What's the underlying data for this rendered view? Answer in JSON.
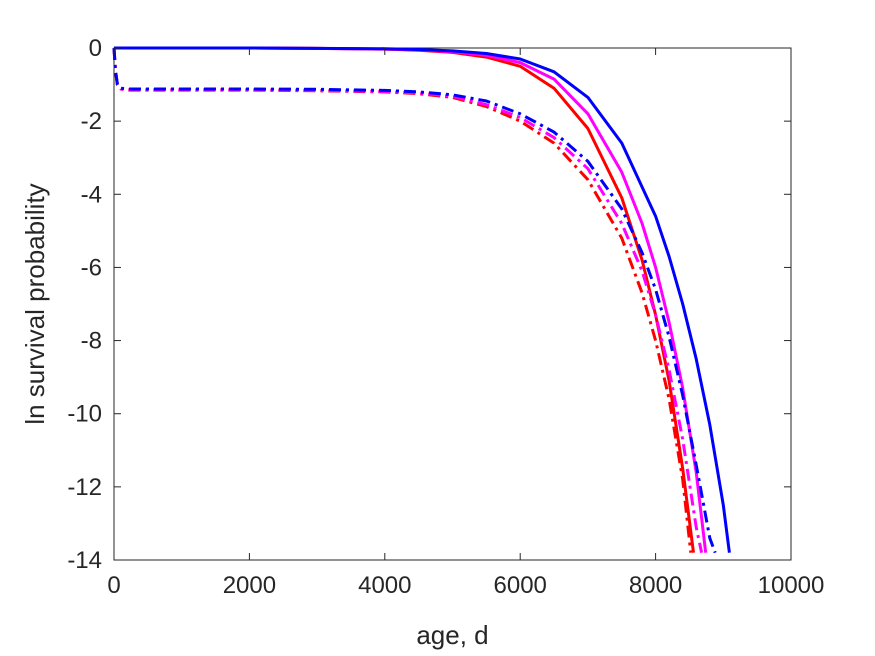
{
  "chart_data": {
    "type": "line",
    "title": "",
    "xlabel": "age, d",
    "ylabel": "ln survival probability",
    "xlim": [
      0,
      10000
    ],
    "ylim": [
      -14,
      0
    ],
    "xticks": [
      0,
      2000,
      4000,
      6000,
      8000,
      10000
    ],
    "xtick_labels": [
      "0",
      "2000",
      "4000",
      "6000",
      "8000",
      "10000"
    ],
    "yticks": [
      0,
      -2,
      -4,
      -6,
      -8,
      -10,
      -12,
      -14
    ],
    "ytick_labels": [
      "0",
      "-2",
      "-4",
      "-6",
      "-8",
      "-10",
      "-12",
      "-14"
    ],
    "grid": false,
    "legend": "none",
    "series": [
      {
        "color": "#ff0000",
        "dash": "solid",
        "x": [
          0,
          1000,
          2000,
          3000,
          4000,
          4500,
          5000,
          5500,
          6000,
          6500,
          7000,
          7500,
          7800,
          8000,
          8200,
          8400,
          8560
        ],
        "y": [
          0,
          0,
          0,
          -0.01,
          -0.03,
          -0.06,
          -0.12,
          -0.25,
          -0.5,
          -1.1,
          -2.2,
          -4.1,
          -5.8,
          -7.3,
          -9.1,
          -11.5,
          -13.8
        ]
      },
      {
        "color": "#ff00ff",
        "dash": "solid",
        "x": [
          0,
          1000,
          2000,
          3000,
          4000,
          4500,
          5000,
          5500,
          6000,
          6500,
          7000,
          7500,
          7800,
          8000,
          8200,
          8400,
          8600,
          8740
        ],
        "y": [
          0,
          0,
          0,
          -0.01,
          -0.03,
          -0.05,
          -0.1,
          -0.2,
          -0.4,
          -0.85,
          -1.8,
          -3.4,
          -4.8,
          -6.0,
          -7.5,
          -9.3,
          -11.6,
          -13.8
        ]
      },
      {
        "color": "#0000ff",
        "dash": "solid",
        "x": [
          0,
          1000,
          2000,
          3000,
          4000,
          4500,
          5000,
          5500,
          6000,
          6500,
          7000,
          7500,
          8000,
          8200,
          8400,
          8600,
          8800,
          9000,
          9090
        ],
        "y": [
          0,
          0,
          0,
          -0.01,
          -0.02,
          -0.04,
          -0.08,
          -0.15,
          -0.3,
          -0.65,
          -1.35,
          -2.6,
          -4.6,
          -5.7,
          -7.0,
          -8.5,
          -10.3,
          -12.5,
          -13.8
        ]
      },
      {
        "color": "#ff0000",
        "dash": "dashdot",
        "x": [
          0,
          20,
          50,
          100,
          200,
          1000,
          2000,
          3000,
          4000,
          4500,
          5000,
          5500,
          6000,
          6500,
          7000,
          7500,
          7800,
          8000,
          8200,
          8400,
          8520
        ],
        "y": [
          0,
          -0.6,
          -1.0,
          -1.12,
          -1.15,
          -1.15,
          -1.15,
          -1.17,
          -1.2,
          -1.25,
          -1.35,
          -1.6,
          -2.0,
          -2.6,
          -3.6,
          -5.2,
          -6.7,
          -8.0,
          -9.6,
          -11.8,
          -13.8
        ]
      },
      {
        "color": "#ff00ff",
        "dash": "dashdot",
        "x": [
          0,
          20,
          50,
          100,
          200,
          1000,
          2000,
          3000,
          4000,
          4500,
          5000,
          5500,
          6000,
          6500,
          7000,
          7500,
          7800,
          8000,
          8200,
          8400,
          8600,
          8680
        ],
        "y": [
          0,
          -0.6,
          -1.0,
          -1.12,
          -1.14,
          -1.14,
          -1.14,
          -1.16,
          -1.19,
          -1.23,
          -1.32,
          -1.55,
          -1.9,
          -2.45,
          -3.3,
          -4.8,
          -6.1,
          -7.3,
          -8.8,
          -10.7,
          -13.1,
          -13.8
        ]
      },
      {
        "color": "#0000ff",
        "dash": "dashdot",
        "x": [
          0,
          20,
          50,
          100,
          200,
          1000,
          2000,
          3000,
          4000,
          4500,
          5000,
          5500,
          6000,
          6500,
          7000,
          7500,
          7800,
          8000,
          8200,
          8400,
          8600,
          8800,
          8880
        ],
        "y": [
          0,
          -0.6,
          -1.0,
          -1.1,
          -1.12,
          -1.12,
          -1.12,
          -1.13,
          -1.16,
          -1.2,
          -1.28,
          -1.45,
          -1.8,
          -2.3,
          -3.1,
          -4.4,
          -5.6,
          -6.6,
          -7.9,
          -9.5,
          -11.4,
          -13.4,
          -13.8
        ]
      }
    ]
  }
}
